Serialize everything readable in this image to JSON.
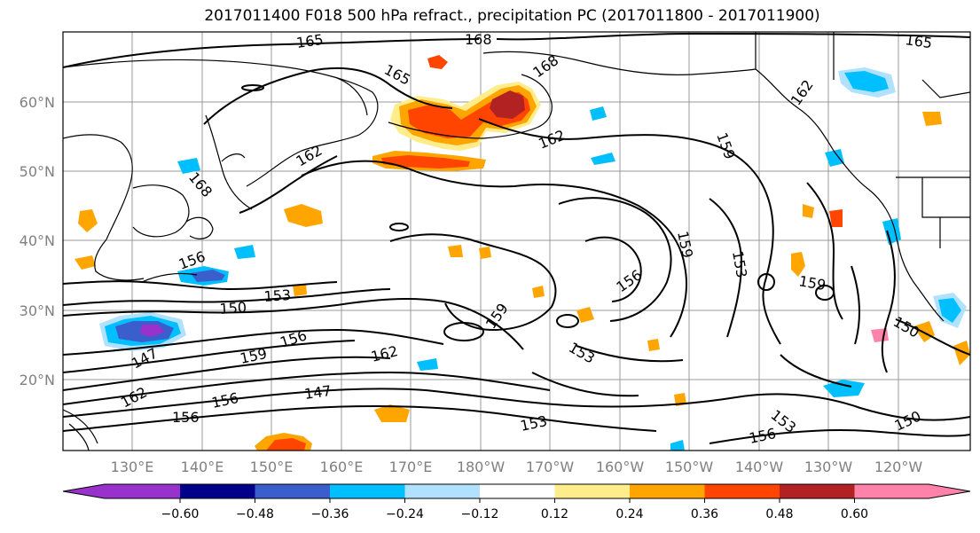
{
  "title": "2017011400 F018 500 hPa refract., precipitation PC (2017011800 - 2017011900)",
  "lat_labels": [
    "60°N",
    "50°N",
    "40°N",
    "30°N",
    "20°N"
  ],
  "lon_labels": [
    "130°E",
    "140°E",
    "150°E",
    "160°E",
    "170°E",
    "180°W",
    "170°W",
    "160°W",
    "150°W",
    "140°W",
    "130°W",
    "120°W"
  ],
  "contour_labels": [
    "165",
    "168",
    "165",
    "165",
    "168",
    "162",
    "162",
    "168",
    "159",
    "159",
    "156",
    "153",
    "159",
    "153",
    "150",
    "153",
    "156",
    "159",
    "162",
    "147",
    "147",
    "156",
    "156",
    "162",
    "153",
    "150",
    "156",
    "153",
    "159",
    "150",
    "156",
    "162"
  ],
  "colorbar": {
    "tick_labels": [
      "−0.60",
      "−0.48",
      "−0.36",
      "−0.24",
      "−0.12",
      "0.12",
      "0.24",
      "0.36",
      "0.48",
      "0.60"
    ],
    "colors": [
      "#9932CC",
      "#00008B",
      "#3A5FCD",
      "#00BFFF",
      "#B0E2FF",
      "#FFFFFF",
      "#FFEC8B",
      "#FFA500",
      "#FF4500",
      "#B22222",
      "#FF82AB"
    ]
  }
}
